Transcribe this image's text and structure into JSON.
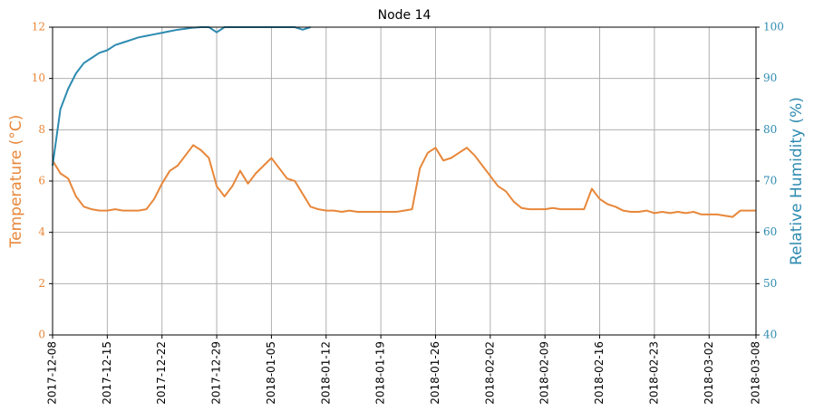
{
  "chart_data": {
    "type": "line",
    "title": "Node 14",
    "y_label": "Temperature (°C)",
    "y2_label": "Relative Humidity (%)",
    "x": [
      "2017-12-08",
      "2017-12-09",
      "2017-12-10",
      "2017-12-11",
      "2017-12-12",
      "2017-12-13",
      "2017-12-14",
      "2017-12-15",
      "2017-12-16",
      "2017-12-17",
      "2017-12-18",
      "2017-12-19",
      "2017-12-20",
      "2017-12-21",
      "2017-12-22",
      "2017-12-23",
      "2017-12-24",
      "2017-12-25",
      "2017-12-26",
      "2017-12-27",
      "2017-12-28",
      "2017-12-29",
      "2017-12-30",
      "2017-12-31",
      "2018-01-01",
      "2018-01-02",
      "2018-01-03",
      "2018-01-04",
      "2018-01-05",
      "2018-01-06",
      "2018-01-07",
      "2018-01-08",
      "2018-01-09",
      "2018-01-10",
      "2018-01-11",
      "2018-01-12",
      "2018-01-13",
      "2018-01-14",
      "2018-01-15",
      "2018-01-16",
      "2018-01-17",
      "2018-01-18",
      "2018-01-19",
      "2018-01-20",
      "2018-01-21",
      "2018-01-22",
      "2018-01-23",
      "2018-01-24",
      "2018-01-25",
      "2018-01-26",
      "2018-01-27",
      "2018-01-28",
      "2018-01-29",
      "2018-01-30",
      "2018-01-31",
      "2018-02-01",
      "2018-02-02",
      "2018-02-03",
      "2018-02-04",
      "2018-02-05",
      "2018-02-06",
      "2018-02-07",
      "2018-02-08",
      "2018-02-09",
      "2018-02-10",
      "2018-02-11",
      "2018-02-12",
      "2018-02-13",
      "2018-02-14",
      "2018-02-15",
      "2018-02-16",
      "2018-02-17",
      "2018-02-18",
      "2018-02-19",
      "2018-02-20",
      "2018-02-21",
      "2018-02-22",
      "2018-02-23",
      "2018-02-24",
      "2018-02-25",
      "2018-02-26",
      "2018-02-27",
      "2018-02-28",
      "2018-03-01",
      "2018-03-02",
      "2018-03-03",
      "2018-03-04",
      "2018-03-05",
      "2018-03-06",
      "2018-03-07",
      "2018-03-08"
    ],
    "series": [
      {
        "name": "Temperature",
        "color": "#e8873a",
        "axis": "y",
        "values": [
          6.8,
          6.3,
          6.1,
          5.4,
          5.0,
          4.9,
          4.85,
          4.85,
          4.9,
          4.85,
          4.85,
          4.85,
          4.9,
          5.3,
          5.9,
          6.4,
          6.6,
          7.0,
          7.4,
          7.2,
          6.9,
          5.8,
          5.4,
          5.8,
          6.4,
          5.9,
          6.3,
          6.6,
          6.9,
          6.5,
          6.1,
          6.0,
          5.5,
          5.0,
          4.9,
          4.85,
          4.85,
          4.8,
          4.85,
          4.8,
          4.8,
          4.8,
          4.8,
          4.8,
          4.8,
          4.85,
          4.9,
          6.5,
          7.1,
          7.3,
          6.8,
          6.9,
          7.1,
          7.3,
          7.0,
          6.6,
          6.2,
          5.8,
          5.6,
          5.2,
          4.95,
          4.9,
          4.9,
          4.9,
          4.95,
          4.9,
          4.9,
          4.9,
          4.9,
          5.7,
          5.3,
          5.1,
          5.0,
          4.85,
          4.8,
          4.8,
          4.85,
          4.75,
          4.8,
          4.75,
          4.8,
          4.75,
          4.8,
          4.7,
          4.7,
          4.7,
          4.65,
          4.6,
          4.85,
          4.85,
          4.85
        ]
      },
      {
        "name": "Relative Humidity",
        "color": "#2e8bb0",
        "axis": "y2",
        "values": [
          73,
          84,
          88,
          91,
          93,
          94,
          95,
          95.5,
          96.5,
          97,
          97.5,
          98,
          98.3,
          98.6,
          98.9,
          99.2,
          99.5,
          99.7,
          99.9,
          100,
          100,
          99,
          100,
          100,
          100,
          100,
          100,
          100,
          100,
          100,
          100,
          100,
          99.5,
          100,
          null,
          null,
          null,
          null,
          null,
          null,
          null,
          null,
          null,
          null,
          null,
          null,
          null,
          null,
          null,
          null,
          null,
          null,
          null,
          null,
          null,
          null,
          null,
          null,
          null,
          null,
          null,
          null,
          null,
          null,
          null,
          null,
          null,
          null,
          null,
          null,
          null,
          null,
          null,
          null,
          null,
          null,
          null,
          null,
          null,
          null,
          null,
          null,
          null,
          null,
          null,
          null,
          null,
          null,
          null,
          null,
          null
        ]
      }
    ],
    "xlim": [
      "2017-12-08",
      "2018-03-08"
    ],
    "xticks": [
      "2017-12-08",
      "2017-12-15",
      "2017-12-22",
      "2017-12-29",
      "2018-01-05",
      "2018-01-12",
      "2018-01-19",
      "2018-01-26",
      "2018-02-02",
      "2018-02-09",
      "2018-02-16",
      "2018-02-23",
      "2018-03-02",
      "2018-03-08"
    ],
    "ylim": [
      0,
      12
    ],
    "yticks": [
      0,
      2,
      4,
      6,
      8,
      10,
      12
    ],
    "y2lim": [
      40,
      100
    ],
    "y2ticks": [
      40,
      50,
      60,
      70,
      80,
      90,
      100
    ],
    "grid": true
  }
}
